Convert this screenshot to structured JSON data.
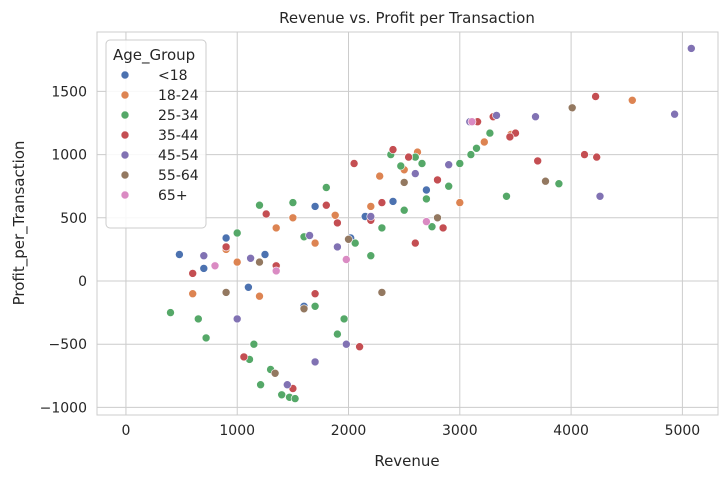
{
  "chart_data": {
    "type": "scatter",
    "title": "Revenue vs. Profit per Transaction",
    "xlabel": "Revenue",
    "ylabel": "Profit_per_Transaction",
    "xlim": [
      -260,
      5320
    ],
    "ylim": [
      -1060,
      1970
    ],
    "x_ticks": [
      0,
      1000,
      2000,
      3000,
      4000,
      5000
    ],
    "y_ticks": [
      -1000,
      -500,
      0,
      500,
      1000,
      1500
    ],
    "x_tick_labels": [
      "0",
      "1000",
      "2000",
      "3000",
      "4000",
      "5000"
    ],
    "y_tick_labels": [
      "−1000",
      "−500",
      "0",
      "500",
      "1000",
      "1500"
    ],
    "grid": true,
    "legend": {
      "title": "Age_Group",
      "position": "top-left",
      "entries": [
        {
          "name": "<18",
          "color": "#4c72b0"
        },
        {
          "name": "18-24",
          "color": "#dd8452"
        },
        {
          "name": "25-34",
          "color": "#55a868"
        },
        {
          "name": "35-44",
          "color": "#c44e52"
        },
        {
          "name": "45-54",
          "color": "#8172b3"
        },
        {
          "name": "55-64",
          "color": "#937860"
        },
        {
          "name": "65+",
          "color": "#da8bc3"
        }
      ]
    },
    "series": [
      {
        "name": "<18",
        "color": "#4c72b0",
        "points": [
          [
            480,
            210
          ],
          [
            900,
            340
          ],
          [
            1250,
            210
          ],
          [
            1700,
            590
          ],
          [
            2020,
            340
          ],
          [
            2150,
            510
          ],
          [
            2700,
            720
          ],
          [
            1900,
            -420
          ],
          [
            2400,
            630
          ],
          [
            1600,
            -200
          ],
          [
            700,
            100
          ],
          [
            1100,
            -50
          ]
        ]
      },
      {
        "name": "18-24",
        "color": "#dd8452",
        "points": [
          [
            4550,
            1430
          ],
          [
            2620,
            1020
          ],
          [
            3460,
            1160
          ],
          [
            3220,
            1100
          ],
          [
            2200,
            590
          ],
          [
            1700,
            300
          ],
          [
            900,
            250
          ],
          [
            1500,
            500
          ],
          [
            2280,
            830
          ],
          [
            1350,
            420
          ],
          [
            1880,
            520
          ],
          [
            600,
            -100
          ],
          [
            1000,
            150
          ],
          [
            2500,
            880
          ],
          [
            1200,
            -120
          ],
          [
            3000,
            620
          ]
        ]
      },
      {
        "name": "25-34",
        "color": "#55a868",
        "points": [
          [
            3270,
            1170
          ],
          [
            3420,
            670
          ],
          [
            3890,
            770
          ],
          [
            2660,
            930
          ],
          [
            2600,
            980
          ],
          [
            2470,
            910
          ],
          [
            2380,
            1000
          ],
          [
            1470,
            -920
          ],
          [
            1520,
            -930
          ],
          [
            1400,
            -900
          ],
          [
            1300,
            -700
          ],
          [
            1210,
            -820
          ],
          [
            1110,
            -620
          ],
          [
            1900,
            -420
          ],
          [
            1700,
            -200
          ],
          [
            1150,
            -500
          ],
          [
            720,
            -450
          ],
          [
            1200,
            600
          ],
          [
            1500,
            620
          ],
          [
            1800,
            740
          ],
          [
            2500,
            560
          ],
          [
            3000,
            930
          ],
          [
            2700,
            650
          ],
          [
            3100,
            1000
          ],
          [
            2750,
            430
          ],
          [
            2200,
            200
          ],
          [
            1960,
            -300
          ],
          [
            650,
            -300
          ],
          [
            400,
            -250
          ],
          [
            2060,
            300
          ],
          [
            2300,
            420
          ],
          [
            1600,
            350
          ],
          [
            1000,
            380
          ],
          [
            2900,
            750
          ],
          [
            3150,
            1050
          ]
        ]
      },
      {
        "name": "35-44",
        "color": "#c44e52",
        "points": [
          [
            4220,
            1460
          ],
          [
            4120,
            1000
          ],
          [
            4230,
            980
          ],
          [
            3700,
            950
          ],
          [
            3300,
            1300
          ],
          [
            3160,
            1260
          ],
          [
            3500,
            1170
          ],
          [
            2400,
            1040
          ],
          [
            2540,
            980
          ],
          [
            2050,
            930
          ],
          [
            1500,
            -850
          ],
          [
            1060,
            -600
          ],
          [
            1800,
            600
          ],
          [
            2200,
            480
          ],
          [
            2100,
            -520
          ],
          [
            3450,
            1140
          ],
          [
            2800,
            800
          ],
          [
            1900,
            460
          ],
          [
            900,
            270
          ],
          [
            1350,
            120
          ],
          [
            2600,
            300
          ],
          [
            2300,
            620
          ],
          [
            600,
            60
          ],
          [
            1700,
            -100
          ],
          [
            2850,
            420
          ],
          [
            1260,
            530
          ]
        ]
      },
      {
        "name": "45-54",
        "color": "#8172b3",
        "points": [
          [
            5080,
            1840
          ],
          [
            4930,
            1320
          ],
          [
            4260,
            670
          ],
          [
            3680,
            1300
          ],
          [
            3330,
            1310
          ],
          [
            3090,
            1260
          ],
          [
            1450,
            -820
          ],
          [
            1700,
            -640
          ],
          [
            1980,
            -500
          ],
          [
            1000,
            -300
          ],
          [
            2900,
            920
          ],
          [
            2600,
            850
          ],
          [
            2200,
            510
          ],
          [
            1650,
            360
          ],
          [
            1120,
            180
          ],
          [
            700,
            200
          ],
          [
            1900,
            270
          ]
        ]
      },
      {
        "name": "55-64",
        "color": "#937860",
        "points": [
          [
            4010,
            1370
          ],
          [
            3770,
            790
          ],
          [
            1340,
            -730
          ],
          [
            1600,
            -220
          ],
          [
            2000,
            330
          ],
          [
            2500,
            780
          ],
          [
            2800,
            500
          ],
          [
            1200,
            150
          ],
          [
            900,
            -90
          ],
          [
            2300,
            -90
          ]
        ]
      },
      {
        "name": "65+",
        "color": "#da8bc3",
        "points": [
          [
            3110,
            1260
          ],
          [
            2700,
            470
          ],
          [
            1980,
            170
          ],
          [
            1350,
            80
          ],
          [
            800,
            120
          ]
        ]
      }
    ]
  }
}
